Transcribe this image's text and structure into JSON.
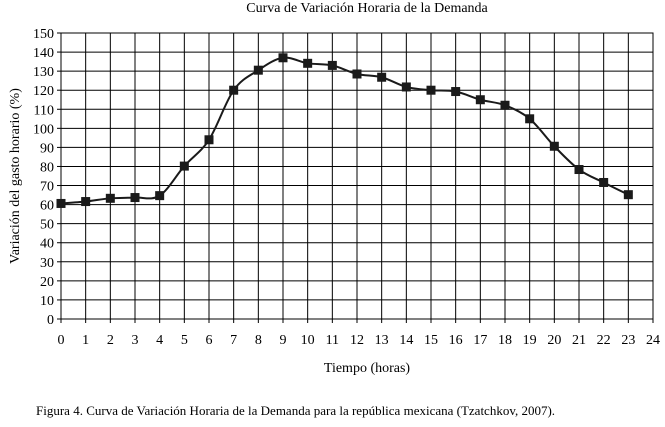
{
  "chart_data": {
    "type": "line",
    "title": "Curva de Variación Horaria de la Demanda",
    "xlabel": "Tiempo (horas)",
    "ylabel": "Variación del gasto horario (%)",
    "xlim": [
      0,
      24
    ],
    "ylim": [
      0,
      150
    ],
    "x_ticks": [
      "0",
      "1",
      "2",
      "3",
      "4",
      "5",
      "6",
      "7",
      "8",
      "9",
      "10",
      "11",
      "12",
      "13",
      "14",
      "15",
      "16",
      "17",
      "18",
      "19",
      "20",
      "21",
      "22",
      "23",
      "24"
    ],
    "y_ticks": [
      "0",
      "10",
      "20",
      "30",
      "40",
      "50",
      "60",
      "70",
      "80",
      "90",
      "100",
      "110",
      "120",
      "130",
      "140",
      "150"
    ],
    "grid": true,
    "legend": "none",
    "line_color": "#1a1a1a",
    "marker": "square",
    "series": [
      {
        "x": [
          0,
          1,
          2,
          3,
          4,
          5,
          6,
          7,
          8,
          9,
          10,
          11,
          12,
          13,
          14,
          15,
          16,
          17,
          18,
          19,
          20,
          21,
          22,
          23
        ],
        "values": [
          60.6,
          61.6,
          63.3,
          63.7,
          64.7,
          80.2,
          94.0,
          120.0,
          130.5,
          137.0,
          134.1,
          133.0,
          128.5,
          126.8,
          121.7,
          120.0,
          119.3,
          115.0,
          112.1,
          105.0,
          90.6,
          78.4,
          71.6,
          65.2
        ]
      }
    ]
  },
  "caption": "Figura 4. Curva de Variación Horaria de la Demanda para la república mexicana (Tzatchkov, 2007)."
}
